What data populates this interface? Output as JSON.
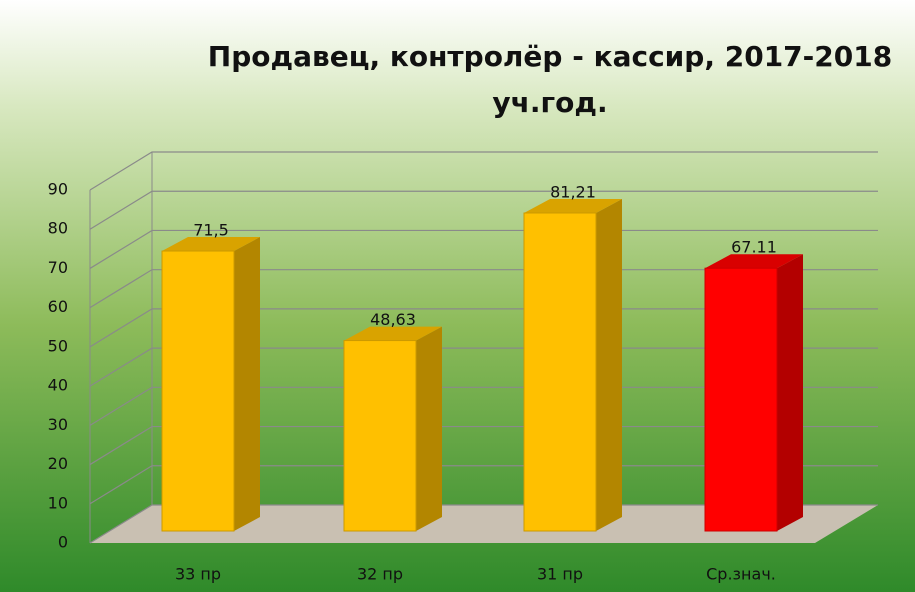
{
  "chart_data": {
    "type": "bar3d",
    "title": "Продавец, контролёр - кассир,  2017-2018 уч.год.",
    "categories": [
      "33 пр",
      "32 пр",
      "31 пр",
      "Ср.знач."
    ],
    "values": [
      71.5,
      48.63,
      81.21,
      67.11
    ],
    "value_labels": [
      "71,5",
      "48,63",
      "81,21",
      "67.11"
    ],
    "colors": [
      "#ffc000",
      "#ffc000",
      "#ffc000",
      "#ff0000"
    ],
    "ylim": [
      0,
      90
    ],
    "yticks": [
      0,
      10,
      20,
      30,
      40,
      50,
      60,
      70,
      80,
      90
    ],
    "grid": true
  }
}
